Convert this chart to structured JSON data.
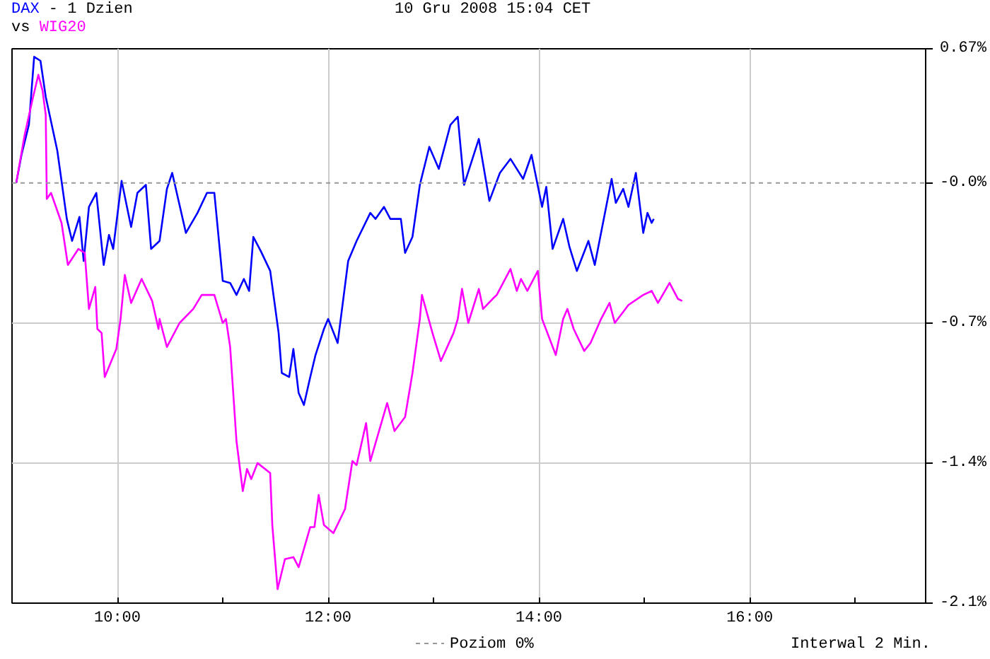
{
  "chart_data": {
    "type": "line",
    "title": "- 1 Dzien",
    "annotations": [
      "vs",
      "10 Gru 2008 15:04 CET",
      "Interwal 2 Min."
    ],
    "xlim": [
      9,
      17.67
    ],
    "xticks": [
      {
        "value": 10,
        "label": "10:00"
      },
      {
        "value": 11,
        "label": null
      },
      {
        "value": 12,
        "label": "12:00"
      },
      {
        "value": 13,
        "label": null
      },
      {
        "value": 14,
        "label": "14:00"
      },
      {
        "value": 15,
        "label": null
      },
      {
        "value": 16,
        "label": "16:00"
      },
      {
        "value": 17,
        "label": null
      }
    ],
    "ylim": [
      -2.1,
      0.67
    ],
    "yticks": [
      {
        "value": 0.67,
        "label": "0.67%"
      },
      {
        "value": 0,
        "label": "-0.0%"
      },
      {
        "value": -0.7,
        "label": "-0.7%"
      },
      {
        "value": -1.4,
        "label": "-1.4%"
      },
      {
        "value": -2.1,
        "label": "-2.1%"
      }
    ],
    "grid": true,
    "marker": "none",
    "line_style": "solid",
    "ref_lines": [
      {
        "axis": "y",
        "value": 0,
        "label": "Poziom 0%",
        "color": "#999999",
        "line_style": "dashed"
      }
    ],
    "series": [
      {
        "name": "DAX",
        "color": "#0000ff",
        "x": [
          9.04,
          9.09,
          9.16,
          9.21,
          9.27,
          9.32,
          9.43,
          9.52,
          9.57,
          9.64,
          9.68,
          9.73,
          9.8,
          9.87,
          9.92,
          9.96,
          10.04,
          10.13,
          10.19,
          10.27,
          10.32,
          10.4,
          10.47,
          10.52,
          10.65,
          10.76,
          10.85,
          10.92,
          11.0,
          11.07,
          11.13,
          11.2,
          11.25,
          11.29,
          11.36,
          11.45,
          11.53,
          11.56,
          11.63,
          11.67,
          11.72,
          11.77,
          11.83,
          11.88,
          11.96,
          12.0,
          12.09,
          12.19,
          12.27,
          12.4,
          12.45,
          12.53,
          12.59,
          12.69,
          12.73,
          12.8,
          12.87,
          12.96,
          13.05,
          13.16,
          13.23,
          13.29,
          13.43,
          13.53,
          13.63,
          13.73,
          13.85,
          13.93,
          14.03,
          14.07,
          14.13,
          14.23,
          14.29,
          14.36,
          14.47,
          14.53,
          14.69,
          14.73,
          14.8,
          14.85,
          14.92,
          14.99,
          15.03,
          15.07,
          15.09
        ],
        "values": [
          0.0,
          0.14,
          0.29,
          0.63,
          0.61,
          0.43,
          0.16,
          -0.18,
          -0.29,
          -0.17,
          -0.39,
          -0.12,
          -0.05,
          -0.41,
          -0.26,
          -0.33,
          0.01,
          -0.22,
          -0.05,
          -0.01,
          -0.33,
          -0.29,
          -0.03,
          0.05,
          -0.25,
          -0.15,
          -0.05,
          -0.05,
          -0.49,
          -0.5,
          -0.56,
          -0.48,
          -0.54,
          -0.27,
          -0.34,
          -0.44,
          -0.75,
          -0.95,
          -0.97,
          -0.83,
          -1.05,
          -1.11,
          -0.97,
          -0.86,
          -0.73,
          -0.68,
          -0.8,
          -0.39,
          -0.29,
          -0.15,
          -0.18,
          -0.12,
          -0.18,
          -0.18,
          -0.35,
          -0.27,
          -0.01,
          0.18,
          0.07,
          0.29,
          0.33,
          -0.01,
          0.22,
          -0.09,
          0.05,
          0.12,
          0.02,
          0.14,
          -0.12,
          -0.02,
          -0.33,
          -0.18,
          -0.32,
          -0.44,
          -0.29,
          -0.41,
          0.02,
          -0.1,
          -0.03,
          -0.12,
          0.05,
          -0.25,
          -0.15,
          -0.2,
          -0.18
        ]
      },
      {
        "name": "WIG20",
        "color": "#ff00ff",
        "x": [
          9.04,
          9.12,
          9.2,
          9.25,
          9.29,
          9.32,
          9.33,
          9.37,
          9.47,
          9.53,
          9.63,
          9.69,
          9.73,
          9.79,
          9.81,
          9.85,
          9.88,
          9.99,
          10.03,
          10.07,
          10.13,
          10.23,
          10.33,
          10.39,
          10.4,
          10.47,
          10.59,
          10.72,
          10.8,
          10.92,
          11.0,
          11.03,
          11.07,
          11.13,
          11.19,
          11.23,
          11.27,
          11.33,
          11.45,
          11.47,
          11.52,
          11.59,
          11.67,
          11.72,
          11.83,
          11.87,
          11.91,
          11.96,
          12.05,
          12.16,
          12.23,
          12.27,
          12.36,
          12.4,
          12.56,
          12.63,
          12.73,
          12.8,
          12.87,
          12.89,
          12.99,
          13.07,
          13.19,
          13.23,
          13.27,
          13.33,
          13.43,
          13.47,
          13.56,
          13.6,
          13.73,
          13.79,
          13.83,
          13.89,
          13.99,
          14.03,
          14.16,
          14.23,
          14.27,
          14.33,
          14.43,
          14.49,
          14.59,
          14.67,
          14.72,
          14.85,
          14.99,
          15.07,
          15.13,
          15.24,
          15.32,
          15.36
        ],
        "values": [
          0.0,
          0.24,
          0.43,
          0.54,
          0.46,
          0.34,
          -0.08,
          -0.05,
          -0.2,
          -0.41,
          -0.33,
          -0.35,
          -0.63,
          -0.52,
          -0.73,
          -0.75,
          -0.97,
          -0.83,
          -0.68,
          -0.46,
          -0.6,
          -0.48,
          -0.59,
          -0.73,
          -0.68,
          -0.82,
          -0.7,
          -0.63,
          -0.56,
          -0.56,
          -0.7,
          -0.68,
          -0.82,
          -1.29,
          -1.54,
          -1.43,
          -1.48,
          -1.4,
          -1.45,
          -1.71,
          -2.03,
          -1.88,
          -1.87,
          -1.92,
          -1.72,
          -1.72,
          -1.56,
          -1.71,
          -1.75,
          -1.63,
          -1.39,
          -1.41,
          -1.2,
          -1.39,
          -1.1,
          -1.24,
          -1.17,
          -0.95,
          -0.68,
          -0.56,
          -0.75,
          -0.89,
          -0.75,
          -0.68,
          -0.53,
          -0.7,
          -0.53,
          -0.63,
          -0.58,
          -0.56,
          -0.43,
          -0.54,
          -0.48,
          -0.54,
          -0.44,
          -0.68,
          -0.86,
          -0.68,
          -0.63,
          -0.73,
          -0.84,
          -0.8,
          -0.68,
          -0.6,
          -0.7,
          -0.61,
          -0.56,
          -0.54,
          -0.6,
          -0.5,
          -0.58,
          -0.59
        ]
      }
    ]
  }
}
